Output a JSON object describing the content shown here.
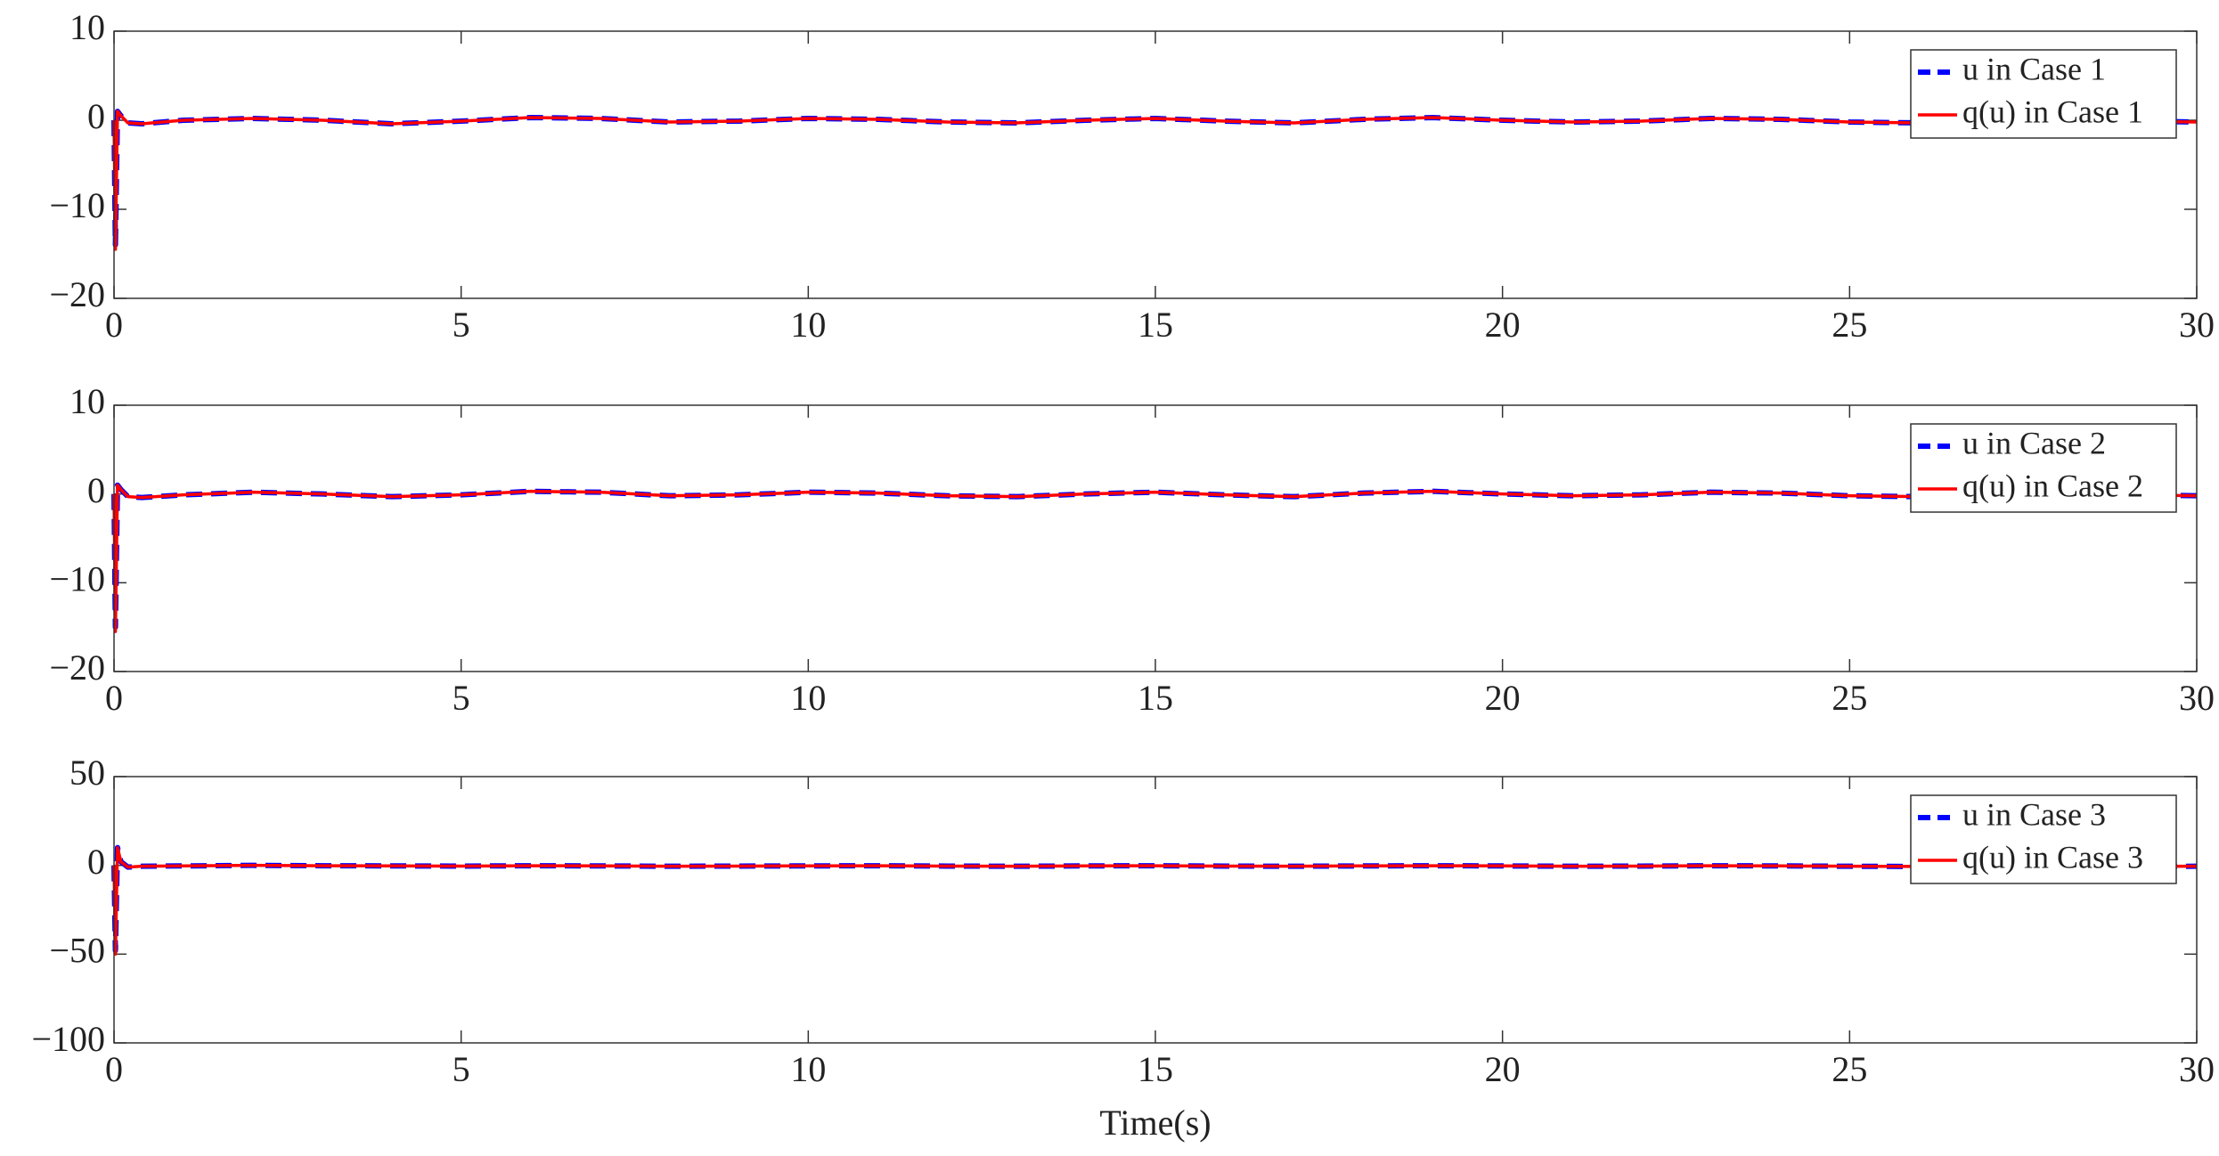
{
  "chart_data": [
    {
      "type": "line",
      "x": [
        0,
        0.02,
        0.05,
        0.1,
        0.2,
        0.4,
        1,
        2,
        3,
        4,
        5,
        6,
        7,
        8,
        9,
        10,
        11,
        12,
        13,
        14,
        15,
        16,
        17,
        18,
        19,
        20,
        21,
        22,
        23,
        24,
        25,
        26,
        27,
        28,
        29,
        30
      ],
      "series": [
        {
          "name": "u in Case 1",
          "color": "#0000ff",
          "values": [
            0,
            -14,
            1,
            0.5,
            -0.3,
            -0.4,
            0,
            0.2,
            0,
            -0.4,
            -0.1,
            0.3,
            0.2,
            -0.2,
            -0.1,
            0.2,
            0.1,
            -0.2,
            -0.3,
            0,
            0.2,
            -0.1,
            -0.3,
            0.1,
            0.3,
            0,
            -0.2,
            -0.1,
            0.2,
            0.1,
            -0.2,
            -0.3,
            -0.2,
            0,
            -0.1,
            -0.2
          ]
        },
        {
          "name": "q(u) in Case 1",
          "color": "#ff0000",
          "values": [
            0,
            -14.5,
            1,
            0.5,
            -0.3,
            -0.4,
            0,
            0.2,
            0,
            -0.4,
            -0.1,
            0.3,
            0.2,
            -0.2,
            -0.1,
            0.2,
            0.1,
            -0.2,
            -0.3,
            0,
            0.2,
            -0.1,
            -0.3,
            0.1,
            0.3,
            0,
            -0.2,
            -0.1,
            0.2,
            0.1,
            -0.2,
            -0.3,
            -0.2,
            0,
            -0.1,
            -0.2
          ]
        }
      ],
      "xlim": [
        0,
        30
      ],
      "xticks": [
        0,
        5,
        10,
        15,
        20,
        25,
        30
      ],
      "ylim": [
        -20,
        10
      ],
      "yticks": [
        {
          "value": -20,
          "label": "−20"
        },
        {
          "value": -10,
          "label": "−10"
        },
        0,
        10
      ]
    },
    {
      "type": "line",
      "x": [
        0,
        0.02,
        0.05,
        0.1,
        0.2,
        0.4,
        1,
        2,
        3,
        4,
        5,
        6,
        7,
        8,
        9,
        10,
        11,
        12,
        13,
        14,
        15,
        16,
        17,
        18,
        19,
        20,
        21,
        22,
        23,
        24,
        25,
        26,
        27,
        28,
        29,
        30
      ],
      "series": [
        {
          "name": "u in Case 2",
          "color": "#0000ff",
          "values": [
            0,
            -15,
            1,
            0.5,
            -0.3,
            -0.4,
            -0.1,
            0.2,
            0,
            -0.3,
            -0.1,
            0.3,
            0.2,
            -0.2,
            -0.1,
            0.2,
            0.1,
            -0.2,
            -0.3,
            0,
            0.2,
            -0.1,
            -0.3,
            0.1,
            0.3,
            0,
            -0.2,
            -0.1,
            0.2,
            0.1,
            -0.2,
            -0.3,
            -0.2,
            0,
            -0.1,
            -0.2
          ]
        },
        {
          "name": "q(u) in Case 2",
          "color": "#ff0000",
          "values": [
            0,
            -15.5,
            1,
            0.5,
            -0.3,
            -0.4,
            -0.1,
            0.2,
            0,
            -0.3,
            -0.1,
            0.3,
            0.2,
            -0.2,
            -0.1,
            0.2,
            0.1,
            -0.2,
            -0.3,
            0,
            0.2,
            -0.1,
            -0.3,
            0.1,
            0.3,
            0,
            -0.2,
            -0.1,
            0.2,
            0.1,
            -0.2,
            -0.3,
            -0.2,
            0,
            -0.1,
            -0.2
          ]
        }
      ],
      "xlim": [
        0,
        30
      ],
      "xticks": [
        0,
        5,
        10,
        15,
        20,
        25,
        30
      ],
      "ylim": [
        -20,
        10
      ],
      "yticks": [
        {
          "value": -20,
          "label": "−20"
        },
        {
          "value": -10,
          "label": "−10"
        },
        0,
        10
      ]
    },
    {
      "type": "line",
      "x": [
        0,
        0.02,
        0.05,
        0.1,
        0.2,
        0.4,
        1,
        2,
        3,
        4,
        5,
        6,
        7,
        8,
        9,
        10,
        11,
        12,
        13,
        14,
        15,
        16,
        17,
        18,
        19,
        20,
        21,
        22,
        23,
        24,
        25,
        26,
        27,
        28,
        29,
        30
      ],
      "series": [
        {
          "name": "u in Case 3",
          "color": "#0000ff",
          "values": [
            0,
            -48,
            10,
            2,
            -1,
            -0.5,
            -0.3,
            0,
            -0.2,
            -0.3,
            -0.4,
            -0.2,
            -0.3,
            -0.5,
            -0.4,
            -0.3,
            -0.2,
            -0.4,
            -0.5,
            -0.3,
            -0.2,
            -0.4,
            -0.5,
            -0.3,
            -0.2,
            -0.3,
            -0.5,
            -0.4,
            -0.2,
            -0.3,
            -0.5,
            -0.6,
            -0.5,
            -0.4,
            -0.6,
            -0.5
          ]
        },
        {
          "name": "q(u) in Case 3",
          "color": "#ff0000",
          "values": [
            0,
            -50,
            10,
            2,
            -1,
            -0.5,
            -0.3,
            0,
            -0.2,
            -0.3,
            -0.4,
            -0.2,
            -0.3,
            -0.5,
            -0.4,
            -0.3,
            -0.2,
            -0.4,
            -0.5,
            -0.3,
            -0.2,
            -0.4,
            -0.5,
            -0.3,
            -0.2,
            -0.3,
            -0.5,
            -0.4,
            -0.2,
            -0.3,
            -0.5,
            -0.6,
            -0.5,
            -0.4,
            -0.6,
            -0.5
          ]
        }
      ],
      "xlim": [
        0,
        30
      ],
      "xticks": [
        0,
        5,
        10,
        15,
        20,
        25,
        30
      ],
      "ylim": [
        -100,
        50
      ],
      "yticks": [
        {
          "value": -100,
          "label": "−100"
        },
        {
          "value": -50,
          "label": "−50"
        },
        0,
        50
      ],
      "x_label": "Time(s)"
    }
  ]
}
